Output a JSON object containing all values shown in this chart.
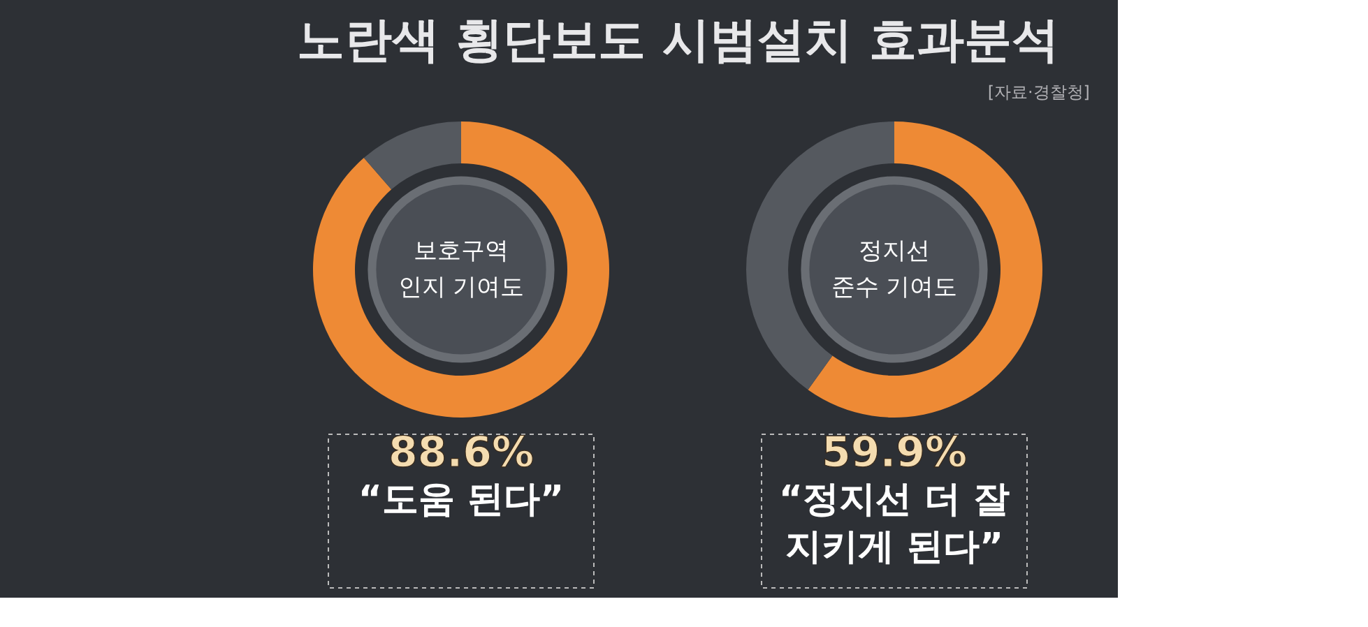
{
  "chart_data": [
    {
      "type": "other",
      "title": "노란색 횡단보도 시범설치 효과분석",
      "annotations": [
        "[자료·경찰청]"
      ]
    },
    {
      "type": "donut",
      "title": "보호구역\n인지 기여도",
      "categories": [
        "“도움 된다”",
        null
      ],
      "values": [
        88.6,
        11.4
      ],
      "colors": [
        "#ee8a35",
        "#55595f"
      ],
      "value_labels": [
        "88.6%",
        null
      ]
    },
    {
      "type": "donut",
      "title": "정지선\n준수 기여도",
      "categories": [
        "“정지선 더 잘\n지키게 된다”",
        null
      ],
      "values": [
        59.9,
        40.1
      ],
      "colors": [
        "#ee8a35",
        "#55595f"
      ],
      "value_labels": [
        "59.9%",
        null
      ]
    }
  ]
}
